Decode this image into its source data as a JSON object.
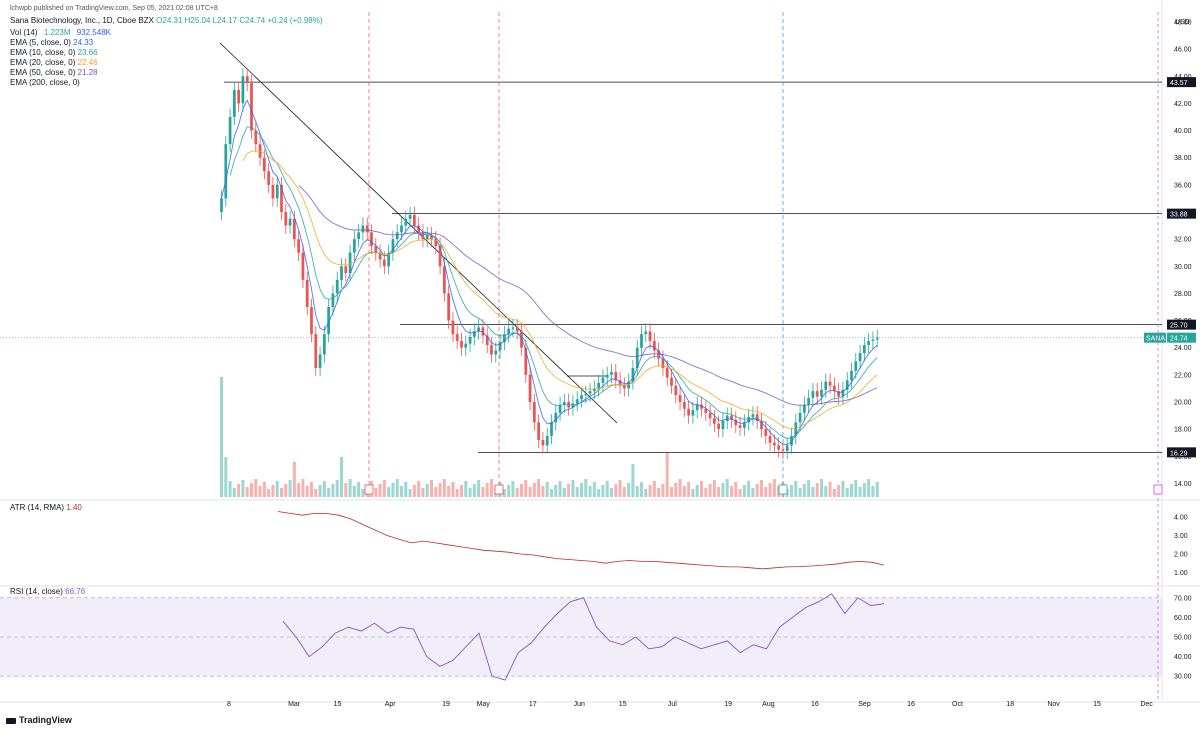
{
  "header": {
    "publisher": "lchwpb published on TradingView.com, Sep 05, 2021 02:08 UTC+8",
    "symbol": "Sana Biotechnology, Inc., 1D, Cboe BZX",
    "ohlc": "O24.31  H25.04  L24.17  C24.74  +0.24 (+0.98%)"
  },
  "legend": {
    "vol": {
      "label": "Vol (14)",
      "v1": "1.223M",
      "v2": "932.548K"
    },
    "ema5": {
      "label": "EMA (5, close, 0)",
      "value": "24.33",
      "color": "#2962ff"
    },
    "ema10": {
      "label": "EMA (10, close, 0)",
      "value": "23.66",
      "color": "#26a69a"
    },
    "ema20": {
      "label": "EMA (20, close, 0)",
      "value": "22.46",
      "color": "#f5a623"
    },
    "ema50": {
      "label": "EMA (50, close, 0)",
      "value": "21.28",
      "color": "#7e57c2"
    },
    "ema200": {
      "label": "EMA (200, close, 0)",
      "value": ""
    },
    "atr": {
      "label": "ATR (14, RMA)",
      "value": "1.40",
      "color": "#c62828"
    },
    "rsi": {
      "label": "RSI (14, close)",
      "value": "66.76",
      "color": "#7e57c2"
    }
  },
  "colors": {
    "up": "#26a69a",
    "down": "#ef5350",
    "grid": "#f0f3fa"
  },
  "footer": {
    "brand": "TradingView"
  },
  "chart_data": {
    "type": "candlestick",
    "price_axis": {
      "unit": "USD",
      "min": 13,
      "max": 48,
      "ticks": [
        "14.00",
        "16.00",
        "18.00",
        "20.00",
        "22.00",
        "24.00",
        "26.00",
        "28.00",
        "30.00",
        "32.00",
        "34.00",
        "36.00",
        "38.00",
        "40.00",
        "42.00",
        "44.00",
        "46.00",
        "48.00"
      ]
    },
    "x_ticks": [
      {
        "label": "8",
        "day": 0
      },
      {
        "label": "Mar",
        "day": 21
      },
      {
        "label": "15",
        "day": 35
      },
      {
        "label": "Apr",
        "day": 52
      },
      {
        "label": "19",
        "day": 70
      },
      {
        "label": "May",
        "day": 82
      },
      {
        "label": "17",
        "day": 98
      },
      {
        "label": "Jun",
        "day": 113
      },
      {
        "label": "15",
        "day": 127
      },
      {
        "label": "Jul",
        "day": 143
      },
      {
        "label": "19",
        "day": 161
      },
      {
        "label": "Aug",
        "day": 174
      },
      {
        "label": "16",
        "day": 189
      },
      {
        "label": "Sep",
        "day": 205
      },
      {
        "label": "16",
        "day": 220
      },
      {
        "label": "Oct",
        "day": 235
      },
      {
        "label": "18",
        "day": 252
      },
      {
        "label": "Nov",
        "day": 266
      },
      {
        "label": "15",
        "day": 280
      },
      {
        "label": "Dec",
        "day": 296
      }
    ],
    "price_labels": [
      {
        "value": "43.57",
        "price": 43.57,
        "kind": "line"
      },
      {
        "value": "33.88",
        "price": 33.88,
        "kind": "line"
      },
      {
        "value": "25.70",
        "price": 25.7,
        "kind": "line"
      },
      {
        "value": "24.74",
        "price": 24.74,
        "kind": "last",
        "tag": "SANA"
      },
      {
        "value": "16.29",
        "price": 16.29,
        "kind": "line"
      }
    ],
    "closes": [
      35,
      39,
      41,
      43,
      42,
      44,
      43.5,
      40,
      39,
      38,
      37,
      36,
      35,
      36,
      34,
      33,
      33.5,
      32,
      31,
      29,
      27,
      25,
      22.5,
      23.5,
      25,
      27,
      28,
      29,
      30,
      29.5,
      31,
      32,
      32.5,
      33,
      32.5,
      31.5,
      31,
      30.5,
      30,
      31,
      32,
      32.5,
      33,
      33.5,
      33.8,
      33,
      32.5,
      32,
      32.3,
      32,
      31.5,
      30,
      28,
      26,
      25,
      24.5,
      24,
      24.3,
      24.8,
      25.2,
      25.5,
      24.9,
      24.2,
      23.5,
      23.8,
      24.4,
      25,
      25.4,
      25.5,
      25.2,
      24,
      22,
      20,
      18.5,
      17.2,
      16.8,
      17.5,
      18.5,
      19.2,
      19.8,
      20,
      19.6,
      19.9,
      20.2,
      20.5,
      20.6,
      20.8,
      21,
      21.4,
      21.8,
      22,
      22.2,
      21.6,
      21.2,
      21,
      21.5,
      22.5,
      24,
      25,
      25.2,
      24.5,
      23.8,
      23.2,
      22.5,
      21.8,
      21.2,
      20.5,
      20,
      19.5,
      19,
      19.4,
      19.8,
      19.5,
      19.2,
      18.8,
      18.4,
      18,
      18.6,
      19,
      18.7,
      18.3,
      18.1,
      18.5,
      18.9,
      19.1,
      18.6,
      18,
      17.5,
      17,
      16.8,
      16.5,
      16.4,
      16.8,
      17.5,
      18.5,
      19.2,
      19.8,
      20.3,
      20.8,
      20.4,
      20.9,
      21.5,
      21.2,
      20.8,
      20.4,
      20.9,
      21.6,
      22.3,
      23,
      23.6,
      24.2,
      24.5,
      24.6,
      24.74
    ],
    "atr": {
      "ticks": [
        "1.00",
        "2.00",
        "3.00",
        "4.00"
      ],
      "min": 0.7,
      "max": 4.6,
      "values": [
        4.3,
        4.2,
        4.1,
        4.2,
        4.2,
        4.1,
        3.9,
        3.6,
        3.3,
        3.0,
        2.8,
        2.6,
        2.7,
        2.6,
        2.5,
        2.4,
        2.3,
        2.2,
        2.15,
        2.1,
        2.0,
        1.95,
        1.85,
        1.75,
        1.7,
        1.65,
        1.6,
        1.5,
        1.6,
        1.65,
        1.6,
        1.6,
        1.55,
        1.5,
        1.45,
        1.4,
        1.35,
        1.3,
        1.3,
        1.25,
        1.2,
        1.25,
        1.3,
        1.32,
        1.35,
        1.4,
        1.45,
        1.55,
        1.6,
        1.55,
        1.4
      ]
    },
    "rsi": {
      "ticks": [
        "30.00",
        "40.00",
        "50.00",
        "60.00",
        "70.00"
      ],
      "min": 25,
      "max": 75,
      "upper": 70,
      "lower": 30,
      "values": [
        58,
        50,
        40,
        45,
        52,
        55,
        53,
        57,
        52,
        55,
        54,
        40,
        35,
        38,
        45,
        52,
        30,
        28,
        42,
        47,
        55,
        62,
        68,
        70,
        55,
        48,
        46,
        50,
        44,
        45,
        50,
        47,
        44,
        46,
        48,
        42,
        46,
        44,
        55,
        60,
        65,
        68,
        72,
        62,
        70,
        66,
        67
      ]
    }
  }
}
